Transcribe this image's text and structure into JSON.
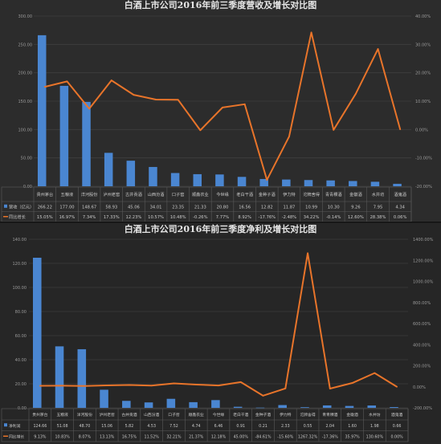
{
  "chart_data": [
    {
      "type": "bar",
      "title": "白酒上市公司2016年前三季度营收及增长对比图",
      "categories": [
        "贵州茅台",
        "五粮液",
        "洋河股份",
        "泸州老窖",
        "古井贡酒",
        "山西汾酒",
        "口子窖",
        "顺鑫农业",
        "今世缘",
        "老白干酒",
        "金种子酒",
        "伊力特",
        "沱牌舍得",
        "青青稞酒",
        "金徽酒",
        "水井坊",
        "酒鬼酒"
      ],
      "series": [
        {
          "name": "营收（亿元）",
          "kind": "bar",
          "axis": "left",
          "color": "#4a86d1",
          "values": [
            266.22,
            177.0,
            148.67,
            58.93,
            45.06,
            34.01,
            23.35,
            21.33,
            20.8,
            16.56,
            12.82,
            11.87,
            10.99,
            10.3,
            9.26,
            7.95,
            4.34
          ],
          "labels": [
            "266.22",
            "177.00",
            "148.67",
            "58.93",
            "45.06",
            "34.01",
            "23.35",
            "21.33",
            "20.80",
            "16.56",
            "12.82",
            "11.87",
            "10.99",
            "10.30",
            "9.26",
            "7.95",
            "4.34"
          ]
        },
        {
          "name": "同比增长",
          "kind": "line",
          "axis": "right",
          "color": "#e8742a",
          "values": [
            15.05,
            16.97,
            7.34,
            17.33,
            12.23,
            10.57,
            10.48,
            -0.26,
            7.77,
            8.92,
            -17.76,
            -2.48,
            34.22,
            -0.14,
            12.6,
            28.38,
            0.06
          ],
          "labels": [
            "15.05%",
            "16.97%",
            "7.34%",
            "17.33%",
            "12.23%",
            "10.57%",
            "10.48%",
            "-0.26%",
            "7.77%",
            "8.92%",
            "-17.76%",
            "-2.48%",
            "34.22%",
            "-0.14%",
            "12.60%",
            "28.38%",
            "0.06%"
          ]
        }
      ],
      "left_axis": {
        "min": 0,
        "max": 300,
        "ticks": [
          "0.00",
          "50.00",
          "100.00",
          "150.00",
          "200.00",
          "250.00",
          "300.00"
        ]
      },
      "right_axis": {
        "min": -20,
        "max": 40,
        "ticks": [
          "-20.00%",
          "-10.00%",
          "0.00%",
          "10.00%",
          "20.00%",
          "30.00%",
          "40.00%"
        ]
      },
      "grid": true
    },
    {
      "type": "bar",
      "title": "白酒上市公司2016年前三季度净利及增长对比图",
      "categories": [
        "贵州茅台",
        "五粮液",
        "洋河股份",
        "泸州老窖",
        "古井贡酒",
        "山西汾酒",
        "口子窖",
        "顺鑫农业",
        "今世缘",
        "老白干酒",
        "金种子酒",
        "伊力特",
        "沱牌舍得",
        "青青稞酒",
        "金徽酒",
        "水井坊",
        "酒鬼酒"
      ],
      "series": [
        {
          "name": "净利润",
          "kind": "bar",
          "axis": "left",
          "color": "#4a86d1",
          "values": [
            124.66,
            51.08,
            48.7,
            15.06,
            5.82,
            4.53,
            7.52,
            4.74,
            6.46,
            0.91,
            0.21,
            2.33,
            0.55,
            2.04,
            1.6,
            1.98,
            0.66
          ],
          "labels": [
            "124.66",
            "51.08",
            "48.70",
            "15.06",
            "5.82",
            "4.53",
            "7.52",
            "4.74",
            "6.46",
            "0.91",
            "0.21",
            "2.33",
            "0.55",
            "2.04",
            "1.60",
            "1.98",
            "0.66"
          ]
        },
        {
          "name": "同比增长",
          "kind": "line",
          "axis": "right",
          "color": "#e8742a",
          "values": [
            9.13,
            10.83,
            8.07,
            13.13,
            16.75,
            11.52,
            32.21,
            21.37,
            12.18,
            45.0,
            -84.61,
            -15.6,
            1267.32,
            -17.36,
            35.97,
            130.6,
            0.0
          ],
          "labels": [
            "9.13%",
            "10.83%",
            "8.07%",
            "13.13%",
            "16.75%",
            "11.52%",
            "32.21%",
            "21.37%",
            "12.18%",
            "45.00%",
            "-84.61%",
            "-15.60%",
            "1267.32%",
            "-17.36%",
            "35.97%",
            "130.60%",
            "0.00%"
          ]
        }
      ],
      "left_axis": {
        "min": 0,
        "max": 140,
        "ticks": [
          "0.00",
          "20.00",
          "40.00",
          "60.00",
          "80.00",
          "100.00",
          "120.00",
          "140.00"
        ]
      },
      "right_axis": {
        "min": -200,
        "max": 1400,
        "ticks": [
          "-200.00%",
          "0.00%",
          "200.00%",
          "400.00%",
          "600.00%",
          "800.00%",
          "1000.00%",
          "1200.00%",
          "1400.00%"
        ]
      },
      "grid": true
    }
  ]
}
